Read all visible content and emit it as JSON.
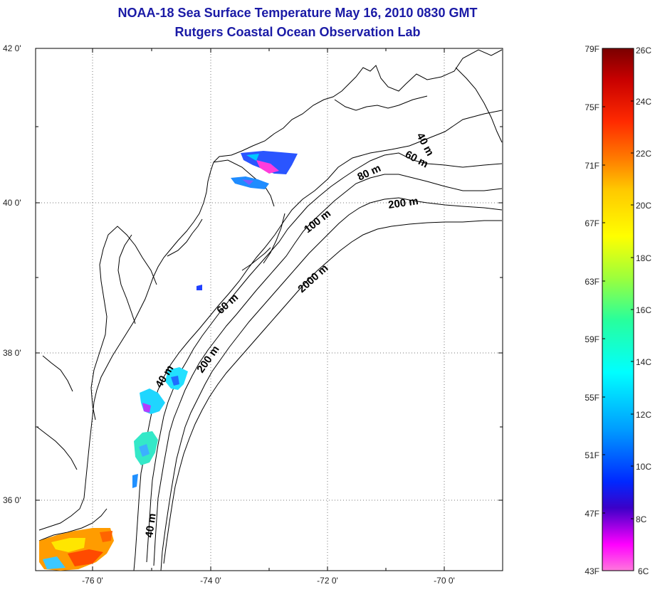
{
  "title_line1": "NOAA-18 Sea Surface Temperature May 16, 2010 0830 GMT",
  "title_line2": "Rutgers Coastal Ocean Observation Lab",
  "lat_ticks": [
    "42 0'",
    "40 0'",
    "38 0'",
    "36 0'"
  ],
  "lon_ticks": [
    "-76 0'",
    "-74 0'",
    "-72 0'",
    "-70 0'"
  ],
  "contour_labels": [
    "40 m",
    "60 m",
    "80 m",
    "200 m",
    "100 m",
    "2000 m",
    "60 m",
    "40 m",
    "200 m",
    "40 m"
  ],
  "colorbar": {
    "fahrenheit": [
      "79F",
      "75F",
      "71F",
      "67F",
      "63F",
      "59F",
      "55F",
      "51F",
      "47F",
      "43F"
    ],
    "celsius": [
      "26C",
      "24C",
      "22C",
      "20C",
      "18C",
      "16C",
      "14C",
      "12C",
      "10C",
      "8C",
      "6C"
    ],
    "colors": [
      "#7a0000",
      "#c80000",
      "#ff2a00",
      "#ff7a00",
      "#ffc800",
      "#ffff00",
      "#9cff3c",
      "#28ff9c",
      "#00ffff",
      "#009cff",
      "#0028ff",
      "#3c00c8",
      "#ff00ff",
      "#ff78dc"
    ]
  }
}
